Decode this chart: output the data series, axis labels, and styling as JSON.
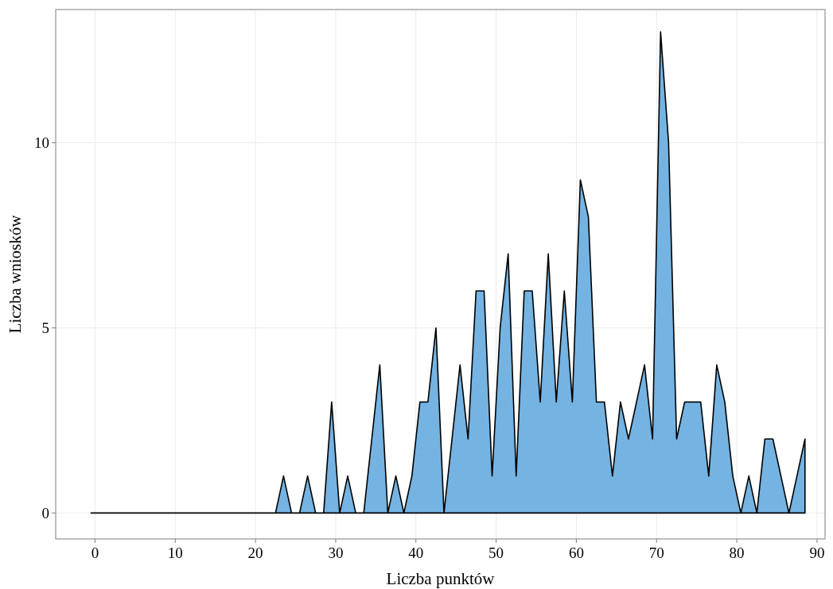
{
  "chart_data": {
    "type": "area",
    "xlabel": "Liczba punktów",
    "ylabel": "Liczba wniosków",
    "x": [
      -0.5,
      0.5,
      1.5,
      2.5,
      3.5,
      4.5,
      5.5,
      6.5,
      7.5,
      8.5,
      9.5,
      10.5,
      11.5,
      12.5,
      13.5,
      14.5,
      15.5,
      16.5,
      17.5,
      18.5,
      19.5,
      20.5,
      21.5,
      22.5,
      23.5,
      24.5,
      25.5,
      26.5,
      27.5,
      28.5,
      29.5,
      30.5,
      31.5,
      32.5,
      33.5,
      34.5,
      35.5,
      36.5,
      37.5,
      38.5,
      39.5,
      40.5,
      41.5,
      42.5,
      43.5,
      44.5,
      45.5,
      46.5,
      47.5,
      48.5,
      49.5,
      50.5,
      51.5,
      52.5,
      53.5,
      54.5,
      55.5,
      56.5,
      57.5,
      58.5,
      59.5,
      60.5,
      61.5,
      62.5,
      63.5,
      64.5,
      65.5,
      66.5,
      67.5,
      68.5,
      69.5,
      70.5,
      71.5,
      72.5,
      73.5,
      74.5,
      75.5,
      76.5,
      77.5,
      78.5,
      79.5,
      80.5,
      81.5,
      82.5,
      83.5,
      84.5,
      85.5,
      86.5,
      87.5,
      88.5
    ],
    "series": [
      {
        "color": "#74b3e2",
        "values": [
          0,
          0,
          0,
          0,
          0,
          0,
          0,
          0,
          0,
          0,
          0,
          0,
          0,
          0,
          0,
          0,
          0,
          0,
          0,
          0,
          0,
          0,
          0,
          0,
          1,
          0,
          0,
          1,
          0,
          0,
          3,
          0,
          1,
          0,
          0,
          2,
          4,
          0,
          1,
          0,
          1,
          3,
          3,
          5,
          0,
          2,
          4,
          2,
          6,
          6,
          1,
          5,
          7,
          1,
          6,
          6,
          3,
          7,
          3,
          6,
          3,
          9,
          8,
          3,
          3,
          1,
          3,
          2,
          3,
          4,
          2,
          13,
          10,
          2,
          3,
          3,
          3,
          1,
          4,
          3,
          1,
          0,
          1,
          0,
          2,
          2,
          1,
          0,
          1,
          2
        ]
      }
    ],
    "xlim": [
      -4.9,
      91
    ],
    "ylim": [
      -0.7,
      13.6
    ],
    "xticks": [
      0,
      10,
      20,
      30,
      40,
      50,
      60,
      70,
      80,
      90
    ],
    "yticks": [
      0,
      5,
      10
    ],
    "grid": true
  }
}
